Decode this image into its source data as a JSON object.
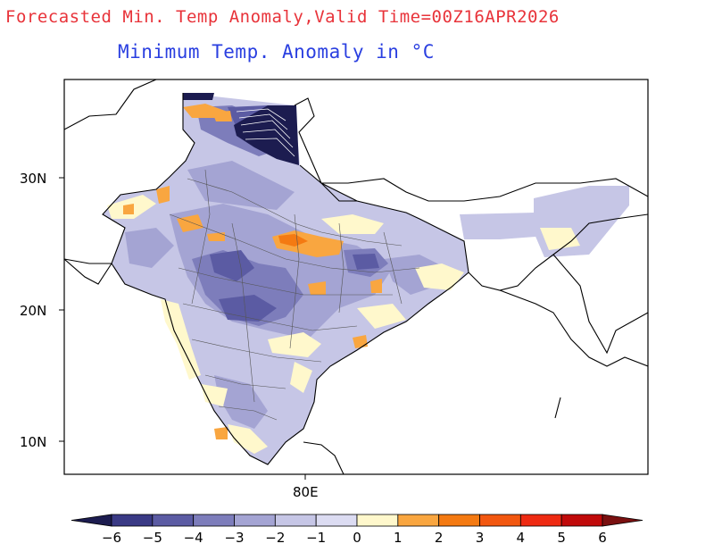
{
  "header": {
    "main_title": "Forecasted Min. Temp Anomaly,Valid Time=00Z16APR2026",
    "subtitle": "Minimum Temp. Anomaly in °C"
  },
  "axes": {
    "lat_ticks": [
      "30N",
      "20N",
      "10N"
    ],
    "lon_ticks": [
      "80E"
    ]
  },
  "colorbar": {
    "labels": [
      "−6",
      "−5",
      "−4",
      "−3",
      "−2",
      "−1",
      "0",
      "1",
      "2",
      "3",
      "4",
      "5",
      "6"
    ],
    "colors": [
      "#1c1c50",
      "#3a3a85",
      "#5b5ba3",
      "#7d7dbb",
      "#a4a4d3",
      "#c6c6e6",
      "#dcdcf2",
      "#fff8cc",
      "#f9a640",
      "#f47a12",
      "#f25710",
      "#ee2a12",
      "#c00a0a",
      "#7a1010"
    ]
  }
}
